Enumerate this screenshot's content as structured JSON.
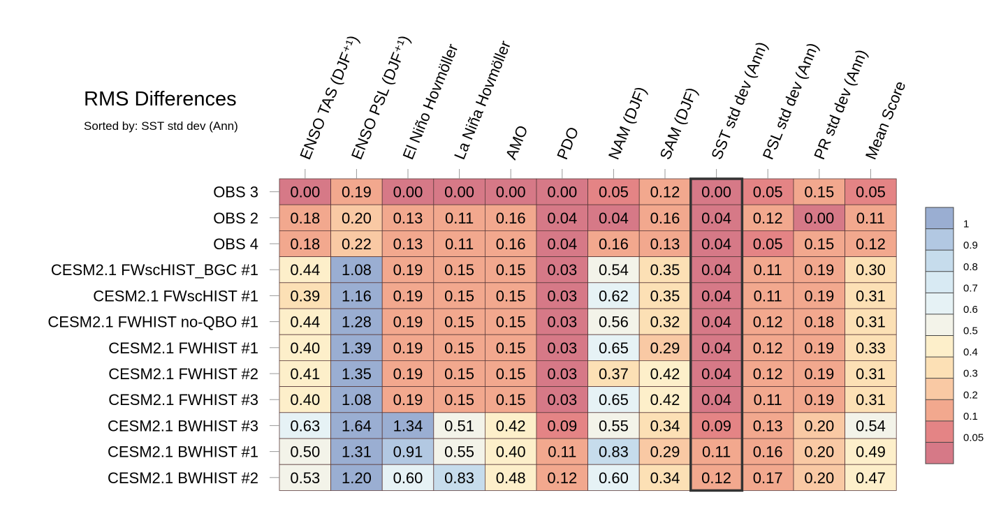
{
  "chart_data": {
    "type": "heatmap",
    "title": "RMS Differences",
    "subtitle": "Sorted by: SST std dev (Ann)",
    "columns": [
      "ENSO TAS (DJF⁺¹)",
      "ENSO PSL (DJF⁺¹)",
      "El Niño Hovmöller",
      "La Niña Hovmöller",
      "AMO",
      "PDO",
      "NAM (DJF)",
      "SAM (DJF)",
      "SST std dev (Ann)",
      "PSL std dev (Ann)",
      "PR std dev (Ann)",
      "Mean Score"
    ],
    "rows": [
      "OBS 3",
      "OBS 2",
      "OBS 4",
      "CESM2.1 FWscHIST_BGC #1",
      "CESM2.1 FWscHIST #1",
      "CESM2.1 FWHIST no-QBO #1",
      "CESM2.1 FWHIST #1",
      "CESM2.1 FWHIST #2",
      "CESM2.1 FWHIST #3",
      "CESM2.1 BWHIST #3",
      "CESM2.1 BWHIST #1",
      "CESM2.1 BWHIST #2"
    ],
    "values": [
      [
        "0.00",
        "0.19",
        "0.00",
        "0.00",
        "0.00",
        "0.00",
        "0.05",
        "0.12",
        "0.00",
        "0.05",
        "0.15",
        "0.05"
      ],
      [
        "0.18",
        "0.20",
        "0.13",
        "0.11",
        "0.16",
        "0.04",
        "0.04",
        "0.16",
        "0.04",
        "0.12",
        "0.00",
        "0.11"
      ],
      [
        "0.18",
        "0.22",
        "0.13",
        "0.11",
        "0.16",
        "0.04",
        "0.16",
        "0.13",
        "0.04",
        "0.05",
        "0.15",
        "0.12"
      ],
      [
        "0.44",
        "1.08",
        "0.19",
        "0.15",
        "0.15",
        "0.03",
        "0.54",
        "0.35",
        "0.04",
        "0.11",
        "0.19",
        "0.30"
      ],
      [
        "0.39",
        "1.16",
        "0.19",
        "0.15",
        "0.15",
        "0.03",
        "0.62",
        "0.35",
        "0.04",
        "0.11",
        "0.19",
        "0.31"
      ],
      [
        "0.44",
        "1.28",
        "0.19",
        "0.15",
        "0.15",
        "0.03",
        "0.56",
        "0.32",
        "0.04",
        "0.12",
        "0.18",
        "0.31"
      ],
      [
        "0.40",
        "1.39",
        "0.19",
        "0.15",
        "0.15",
        "0.03",
        "0.65",
        "0.29",
        "0.04",
        "0.12",
        "0.19",
        "0.33"
      ],
      [
        "0.41",
        "1.35",
        "0.19",
        "0.15",
        "0.15",
        "0.03",
        "0.37",
        "0.42",
        "0.04",
        "0.12",
        "0.19",
        "0.31"
      ],
      [
        "0.40",
        "1.08",
        "0.19",
        "0.15",
        "0.15",
        "0.03",
        "0.65",
        "0.42",
        "0.04",
        "0.11",
        "0.19",
        "0.31"
      ],
      [
        "0.63",
        "1.64",
        "1.34",
        "0.51",
        "0.42",
        "0.09",
        "0.55",
        "0.34",
        "0.09",
        "0.13",
        "0.20",
        "0.54"
      ],
      [
        "0.50",
        "1.31",
        "0.91",
        "0.55",
        "0.40",
        "0.11",
        "0.83",
        "0.29",
        "0.11",
        "0.16",
        "0.20",
        "0.49"
      ],
      [
        "0.53",
        "1.20",
        "0.60",
        "0.83",
        "0.48",
        "0.12",
        "0.60",
        "0.34",
        "0.12",
        "0.17",
        "0.20",
        "0.47"
      ]
    ],
    "highlight_column": "SST std dev (Ann)",
    "colorbar": {
      "ticks": [
        "1",
        "0.9",
        "0.8",
        "0.7",
        "0.6",
        "0.5",
        "0.4",
        "0.3",
        "0.2",
        "0.1",
        "0.05"
      ],
      "bins": [
        {
          "min": 1.0,
          "color": "#9aaed2"
        },
        {
          "min": 0.9,
          "color": "#b2c8e2"
        },
        {
          "min": 0.8,
          "color": "#c6dcec"
        },
        {
          "min": 0.7,
          "color": "#d8eaf3"
        },
        {
          "min": 0.6,
          "color": "#e6f2f5"
        },
        {
          "min": 0.5,
          "color": "#f3f3e9"
        },
        {
          "min": 0.4,
          "color": "#fdefca"
        },
        {
          "min": 0.3,
          "color": "#fce0b5"
        },
        {
          "min": 0.2,
          "color": "#f9c9a4"
        },
        {
          "min": 0.1,
          "color": "#f2a88e"
        },
        {
          "min": 0.05,
          "color": "#e48485"
        },
        {
          "min": 0.0,
          "color": "#d67987"
        }
      ]
    }
  }
}
